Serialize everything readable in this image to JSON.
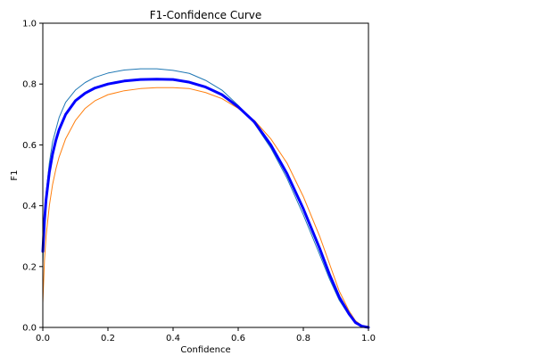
{
  "chart_data": {
    "type": "line",
    "title": "F1-Confidence Curve",
    "xlabel": "Confidence",
    "ylabel": "F1",
    "xlim": [
      0.0,
      1.0
    ],
    "ylim": [
      0.0,
      1.0
    ],
    "x_ticks": [
      "0.0",
      "0.2",
      "0.4",
      "0.6",
      "0.8",
      "1.0"
    ],
    "y_ticks": [
      "0.0",
      "0.2",
      "0.4",
      "0.6",
      "0.8",
      "1.0"
    ],
    "grid": false,
    "legend": "none",
    "series": [
      {
        "color": "#1f77b4",
        "line_weight": "thin",
        "points": [
          [
            0.0,
            0.21
          ],
          [
            0.005,
            0.36
          ],
          [
            0.01,
            0.44
          ],
          [
            0.02,
            0.54
          ],
          [
            0.03,
            0.61
          ],
          [
            0.04,
            0.65
          ],
          [
            0.05,
            0.69
          ],
          [
            0.07,
            0.74
          ],
          [
            0.1,
            0.78
          ],
          [
            0.13,
            0.805
          ],
          [
            0.16,
            0.822
          ],
          [
            0.2,
            0.836
          ],
          [
            0.25,
            0.846
          ],
          [
            0.3,
            0.85
          ],
          [
            0.35,
            0.85
          ],
          [
            0.4,
            0.845
          ],
          [
            0.45,
            0.835
          ],
          [
            0.5,
            0.812
          ],
          [
            0.55,
            0.78
          ],
          [
            0.6,
            0.73
          ],
          [
            0.65,
            0.67
          ],
          [
            0.7,
            0.59
          ],
          [
            0.75,
            0.49
          ],
          [
            0.8,
            0.37
          ],
          [
            0.85,
            0.24
          ],
          [
            0.88,
            0.16
          ],
          [
            0.91,
            0.09
          ],
          [
            0.94,
            0.04
          ],
          [
            0.96,
            0.014
          ],
          [
            0.98,
            0.004
          ],
          [
            1.0,
            0.0
          ]
        ]
      },
      {
        "color": "#ff7f0e",
        "line_weight": "thin",
        "points": [
          [
            0.0,
            0.08
          ],
          [
            0.005,
            0.22
          ],
          [
            0.01,
            0.3
          ],
          [
            0.02,
            0.4
          ],
          [
            0.03,
            0.47
          ],
          [
            0.04,
            0.52
          ],
          [
            0.05,
            0.56
          ],
          [
            0.07,
            0.62
          ],
          [
            0.1,
            0.68
          ],
          [
            0.13,
            0.72
          ],
          [
            0.16,
            0.745
          ],
          [
            0.2,
            0.765
          ],
          [
            0.25,
            0.778
          ],
          [
            0.3,
            0.785
          ],
          [
            0.35,
            0.788
          ],
          [
            0.4,
            0.788
          ],
          [
            0.45,
            0.785
          ],
          [
            0.5,
            0.772
          ],
          [
            0.55,
            0.752
          ],
          [
            0.6,
            0.72
          ],
          [
            0.65,
            0.68
          ],
          [
            0.7,
            0.62
          ],
          [
            0.75,
            0.54
          ],
          [
            0.8,
            0.43
          ],
          [
            0.85,
            0.3
          ],
          [
            0.88,
            0.21
          ],
          [
            0.91,
            0.12
          ],
          [
            0.94,
            0.055
          ],
          [
            0.96,
            0.022
          ],
          [
            0.98,
            0.006
          ],
          [
            1.0,
            0.0
          ]
        ]
      },
      {
        "color": "#0000ff",
        "line_weight": "thick",
        "points": [
          [
            0.0,
            0.25
          ],
          [
            0.005,
            0.35
          ],
          [
            0.01,
            0.42
          ],
          [
            0.02,
            0.51
          ],
          [
            0.03,
            0.57
          ],
          [
            0.04,
            0.615
          ],
          [
            0.05,
            0.65
          ],
          [
            0.07,
            0.7
          ],
          [
            0.1,
            0.745
          ],
          [
            0.13,
            0.77
          ],
          [
            0.16,
            0.787
          ],
          [
            0.2,
            0.8
          ],
          [
            0.25,
            0.81
          ],
          [
            0.3,
            0.815
          ],
          [
            0.35,
            0.816
          ],
          [
            0.4,
            0.815
          ],
          [
            0.45,
            0.806
          ],
          [
            0.5,
            0.79
          ],
          [
            0.55,
            0.765
          ],
          [
            0.6,
            0.725
          ],
          [
            0.65,
            0.675
          ],
          [
            0.7,
            0.6
          ],
          [
            0.75,
            0.505
          ],
          [
            0.8,
            0.39
          ],
          [
            0.85,
            0.26
          ],
          [
            0.88,
            0.175
          ],
          [
            0.91,
            0.1
          ],
          [
            0.94,
            0.045
          ],
          [
            0.96,
            0.016
          ],
          [
            0.98,
            0.004
          ],
          [
            1.0,
            0.0
          ]
        ]
      }
    ]
  }
}
